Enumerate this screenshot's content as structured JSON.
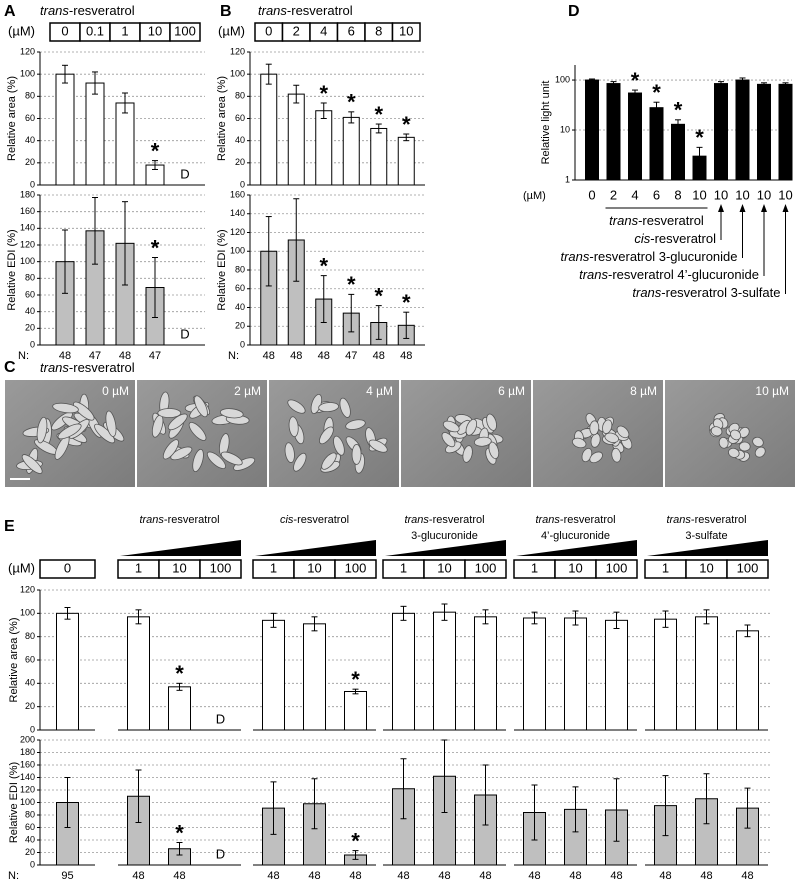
{
  "chart_data": [
    {
      "type": "bar",
      "panel": "A",
      "title": "trans-resveratrol",
      "unit": "(µM)",
      "categories": [
        "0",
        "0.1",
        "1",
        "10",
        "100"
      ],
      "ylabel": "Relative area (%)",
      "color": "#ffffff",
      "values": [
        100,
        92,
        74,
        18,
        null
      ],
      "errors": [
        8,
        10,
        9,
        4,
        null
      ],
      "annotations": [
        null,
        null,
        null,
        "*",
        "D"
      ],
      "ylim": [
        0,
        120
      ],
      "yticks": [
        0,
        20,
        40,
        60,
        80,
        100,
        120
      ],
      "grid": true
    },
    {
      "type": "bar",
      "ylabel": "Relative EDI (%)",
      "color": "#bfbfbf",
      "values": [
        100,
        137,
        122,
        69,
        null
      ],
      "errors": [
        38,
        40,
        50,
        36,
        null
      ],
      "annotations": [
        null,
        null,
        null,
        "*",
        "D"
      ],
      "ylim": [
        0,
        180
      ],
      "yticks": [
        0,
        20,
        40,
        60,
        80,
        100,
        120,
        140,
        160,
        180
      ],
      "grid": true,
      "n_label": "N:",
      "n": [
        48,
        47,
        48,
        47,
        null
      ]
    },
    {
      "type": "bar",
      "panel": "B",
      "title": "trans-resveratrol",
      "unit": "(µM)",
      "categories": [
        "0",
        "2",
        "4",
        "6",
        "8",
        "10"
      ],
      "ylabel": "Relative area (%)",
      "color": "#ffffff",
      "values": [
        100,
        82,
        67,
        61,
        51,
        43
      ],
      "errors": [
        9,
        8,
        7,
        5,
        4,
        3
      ],
      "annotations": [
        null,
        null,
        "*",
        "*",
        "*",
        "*"
      ],
      "ylim": [
        0,
        120
      ],
      "yticks": [
        0,
        20,
        40,
        60,
        80,
        100,
        120
      ],
      "grid": true
    },
    {
      "type": "bar",
      "ylabel": "Relative EDI (%)",
      "color": "#bfbfbf",
      "values": [
        100,
        112,
        49,
        34,
        24,
        21
      ],
      "errors": [
        37,
        44,
        25,
        20,
        18,
        14
      ],
      "annotations": [
        null,
        null,
        "*",
        "*",
        "*",
        "*"
      ],
      "ylim": [
        0,
        160
      ],
      "yticks": [
        0,
        20,
        40,
        60,
        80,
        100,
        120,
        140,
        160
      ],
      "grid": true,
      "n_label": "N:",
      "n": [
        48,
        48,
        48,
        47,
        48,
        48
      ]
    },
    {
      "type": "bar",
      "panel": "D",
      "unit": "(µM)",
      "log": true,
      "categories": [
        "0",
        "2",
        "4",
        "6",
        "8",
        "10",
        "10",
        "10",
        "10",
        "10"
      ],
      "ylabel": "Relative light unit",
      "color": "#000000",
      "values": [
        100,
        85,
        55,
        28,
        13,
        3,
        85,
        100,
        82,
        82
      ],
      "errors": [
        5,
        8,
        8,
        8,
        3,
        1.5,
        8,
        10,
        6,
        6
      ],
      "annotations": [
        null,
        null,
        "*",
        "*",
        "*",
        "*",
        null,
        null,
        null,
        null
      ],
      "ylim": [
        1,
        200
      ],
      "yticks": [
        1,
        10,
        100
      ],
      "grid": true,
      "bracket_label": "trans-resveratrol",
      "arrow_labels": [
        "cis-resveratrol",
        "trans-resveratrol 3-glucuronide",
        "trans-resveratrol 4’-glucuronide",
        "trans-resveratrol 3-sulfate"
      ]
    },
    {
      "type": "bar",
      "panel": "E",
      "unit": "(µM)",
      "group_titles": [
        [
          "trans-resveratrol"
        ],
        [
          "cis-resveratrol"
        ],
        [
          "trans-resveratrol",
          "3-glucuronide"
        ],
        [
          "trans-resveratrol",
          "4’-glucuronide"
        ],
        [
          "trans-resveratrol",
          "3-sulfate"
        ]
      ],
      "categories": [
        "0",
        "1",
        "10",
        "100",
        "1",
        "10",
        "100",
        "1",
        "10",
        "100",
        "1",
        "10",
        "100",
        "1",
        "10",
        "100"
      ],
      "ylabel": "Relative area (%)",
      "color": "#ffffff",
      "values": [
        100,
        97,
        37,
        null,
        94,
        91,
        33,
        100,
        101,
        97,
        96,
        96,
        94,
        95,
        97,
        85
      ],
      "errors": [
        5,
        6,
        3,
        null,
        6,
        6,
        2,
        6,
        7,
        6,
        5,
        6,
        7,
        7,
        6,
        5
      ],
      "annotations": [
        null,
        null,
        "*",
        "D",
        null,
        null,
        "*",
        null,
        null,
        null,
        null,
        null,
        null,
        null,
        null,
        null
      ],
      "ylim": [
        0,
        120
      ],
      "yticks": [
        0,
        20,
        40,
        60,
        80,
        100,
        120
      ],
      "grid": true
    },
    {
      "type": "bar",
      "ylabel": "Relative EDI (%)",
      "color": "#bfbfbf",
      "values": [
        100,
        110,
        26,
        null,
        91,
        98,
        16,
        122,
        142,
        112,
        84,
        89,
        88,
        95,
        106,
        91
      ],
      "errors": [
        40,
        42,
        10,
        null,
        42,
        40,
        7,
        48,
        58,
        48,
        44,
        36,
        50,
        48,
        40,
        32
      ],
      "annotations": [
        null,
        null,
        "*",
        "D",
        null,
        null,
        "*",
        null,
        null,
        null,
        null,
        null,
        null,
        null,
        null,
        null
      ],
      "ylim": [
        0,
        200
      ],
      "yticks": [
        0,
        20,
        40,
        60,
        80,
        100,
        120,
        140,
        160,
        180,
        200
      ],
      "grid": true,
      "n_label": "N:",
      "n": [
        95,
        48,
        48,
        null,
        48,
        48,
        48,
        48,
        48,
        48,
        48,
        48,
        48,
        48,
        48,
        48
      ]
    }
  ],
  "panel_c": {
    "panel": "C",
    "title": "trans-resveratrol",
    "image_labels": [
      "0 µM",
      "2 µM",
      "4 µM",
      "6 µM",
      "8 µM",
      "10 µM"
    ]
  }
}
